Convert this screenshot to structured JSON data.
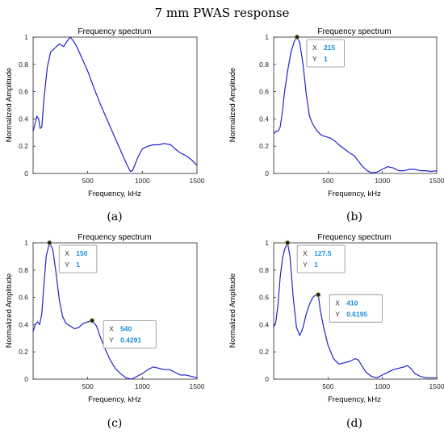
{
  "figure": {
    "title": "7 mm PWAS response"
  },
  "chart_data": [
    {
      "type": "line",
      "panel_label": "(a)",
      "title": "Frequency spectrum",
      "xlabel": "Frequency, kHz",
      "ylabel": "Normalized Amplitude",
      "xlim": [
        0,
        1500
      ],
      "ylim": [
        0,
        1
      ],
      "x_ticks": [
        "500",
        "1000",
        "1500"
      ],
      "y_ticks": [
        "0",
        "0.2",
        "0.4",
        "0.6",
        "0.8",
        "1"
      ],
      "grid": false,
      "line_color": "#2222cc",
      "x": [
        0,
        20,
        35,
        50,
        65,
        80,
        100,
        130,
        160,
        200,
        240,
        280,
        310,
        340,
        370,
        400,
        440,
        500,
        560,
        620,
        680,
        740,
        800,
        850,
        890,
        910,
        930,
        960,
        1000,
        1050,
        1100,
        1150,
        1200,
        1260,
        1300,
        1350,
        1400,
        1450,
        1500
      ],
      "y": [
        0.31,
        0.37,
        0.42,
        0.4,
        0.33,
        0.34,
        0.55,
        0.78,
        0.89,
        0.92,
        0.95,
        0.93,
        0.97,
        1.0,
        0.97,
        0.93,
        0.86,
        0.75,
        0.62,
        0.5,
        0.39,
        0.28,
        0.17,
        0.08,
        0.015,
        0.02,
        0.06,
        0.12,
        0.18,
        0.2,
        0.21,
        0.21,
        0.22,
        0.21,
        0.18,
        0.15,
        0.13,
        0.1,
        0.06
      ],
      "datatips": []
    },
    {
      "type": "line",
      "panel_label": "(b)",
      "title": "Frequency spectrum",
      "xlabel": "Frequency, kHz",
      "ylabel": "Normalized Amplitude",
      "xlim": [
        0,
        1500
      ],
      "ylim": [
        0,
        1
      ],
      "x_ticks": [
        "500",
        "1000",
        "1500"
      ],
      "y_ticks": [
        "0",
        "0.2",
        "0.4",
        "0.6",
        "0.8",
        "1"
      ],
      "grid": false,
      "line_color": "#2222cc",
      "x": [
        0,
        20,
        40,
        60,
        80,
        100,
        130,
        160,
        190,
        215,
        240,
        270,
        300,
        330,
        360,
        400,
        440,
        480,
        520,
        560,
        600,
        650,
        700,
        740,
        780,
        820,
        860,
        900,
        950,
        1000,
        1050,
        1100,
        1150,
        1200,
        1250,
        1300,
        1350,
        1400,
        1450,
        1500
      ],
      "y": [
        0.29,
        0.31,
        0.31,
        0.34,
        0.45,
        0.6,
        0.76,
        0.89,
        0.97,
        1.0,
        0.96,
        0.8,
        0.58,
        0.42,
        0.36,
        0.31,
        0.28,
        0.27,
        0.26,
        0.24,
        0.21,
        0.18,
        0.15,
        0.13,
        0.09,
        0.05,
        0.02,
        0.005,
        0.01,
        0.03,
        0.05,
        0.04,
        0.02,
        0.02,
        0.03,
        0.03,
        0.02,
        0.02,
        0.015,
        0.02
      ],
      "datatips": [
        {
          "x_label": "X",
          "x_value": "215",
          "y_label": "Y",
          "y_value": "1",
          "x": 215,
          "y": 1
        }
      ]
    },
    {
      "type": "line",
      "panel_label": "(c)",
      "title": "Frequency spectrum",
      "xlabel": "Frequency, kHz",
      "ylabel": "Normalized Amplitude",
      "xlim": [
        0,
        1500
      ],
      "ylim": [
        0,
        1
      ],
      "x_ticks": [
        "500",
        "1000",
        "1500"
      ],
      "y_ticks": [
        "0",
        "0.2",
        "0.4",
        "0.6",
        "0.8",
        "1"
      ],
      "grid": false,
      "line_color": "#2222cc",
      "x": [
        0,
        20,
        40,
        60,
        80,
        100,
        120,
        150,
        180,
        210,
        240,
        270,
        300,
        340,
        380,
        420,
        460,
        500,
        540,
        580,
        620,
        660,
        700,
        750,
        800,
        850,
        900,
        950,
        1000,
        1050,
        1100,
        1150,
        1200,
        1250,
        1300,
        1350,
        1400,
        1450,
        1500
      ],
      "y": [
        0.35,
        0.4,
        0.42,
        0.4,
        0.48,
        0.7,
        0.9,
        1.0,
        0.95,
        0.78,
        0.58,
        0.46,
        0.41,
        0.39,
        0.37,
        0.38,
        0.41,
        0.42,
        0.43,
        0.39,
        0.3,
        0.22,
        0.15,
        0.08,
        0.04,
        0.01,
        0.0,
        0.02,
        0.04,
        0.07,
        0.09,
        0.08,
        0.07,
        0.07,
        0.05,
        0.03,
        0.03,
        0.02,
        0.01
      ],
      "datatips": [
        {
          "x_label": "X",
          "x_value": "150",
          "y_label": "Y",
          "y_value": "1",
          "x": 150,
          "y": 1
        },
        {
          "x_label": "X",
          "x_value": "540",
          "y_label": "Y",
          "y_value": "0.4291",
          "x": 540,
          "y": 0.4291
        }
      ]
    },
    {
      "type": "line",
      "panel_label": "(d)",
      "title": "Frequency spectrum",
      "xlabel": "Frequency, kHz",
      "ylabel": "Normalized Amplitude",
      "xlim": [
        0,
        1500
      ],
      "ylim": [
        0,
        1
      ],
      "x_ticks": [
        "500",
        "1000",
        "1500"
      ],
      "y_ticks": [
        "0",
        "0.2",
        "0.4",
        "0.6",
        "0.8",
        "1"
      ],
      "grid": false,
      "line_color": "#2222cc",
      "x": [
        0,
        20,
        40,
        60,
        80,
        100,
        127.5,
        150,
        180,
        210,
        240,
        270,
        300,
        330,
        360,
        390,
        410,
        430,
        460,
        500,
        550,
        600,
        650,
        700,
        750,
        780,
        810,
        850,
        900,
        950,
        1000,
        1050,
        1100,
        1150,
        1200,
        1230,
        1260,
        1300,
        1350,
        1400,
        1450,
        1500
      ],
      "y": [
        0.38,
        0.42,
        0.55,
        0.75,
        0.88,
        0.95,
        1.0,
        0.9,
        0.6,
        0.38,
        0.32,
        0.38,
        0.48,
        0.55,
        0.6,
        0.62,
        0.62,
        0.5,
        0.38,
        0.25,
        0.15,
        0.11,
        0.12,
        0.13,
        0.15,
        0.14,
        0.1,
        0.05,
        0.02,
        0.01,
        0.03,
        0.05,
        0.07,
        0.08,
        0.09,
        0.1,
        0.08,
        0.04,
        0.02,
        0.01,
        0.01,
        0.01
      ],
      "datatips": [
        {
          "x_label": "X",
          "x_value": "127.5",
          "y_label": "Y",
          "y_value": "1",
          "x": 127.5,
          "y": 1
        },
        {
          "x_label": "X",
          "x_value": "410",
          "y_label": "Y",
          "y_value": "0.6195",
          "x": 410,
          "y": 0.6195
        }
      ]
    }
  ]
}
